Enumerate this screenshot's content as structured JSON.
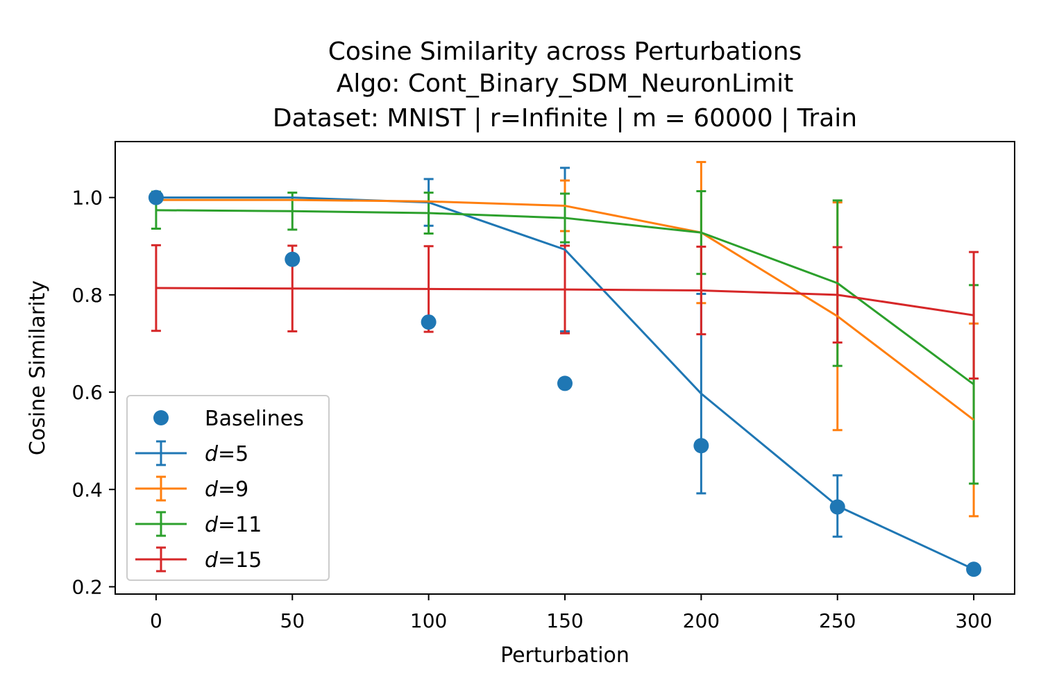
{
  "chart_data": {
    "type": "line",
    "title": "Cosine Similarity across Perturbations",
    "subtitle_lines": [
      "Algo: Cont_Binary_SDM_NeuronLimit",
      "Dataset: MNIST | r=Infinite | m = 60000 | Train"
    ],
    "xlabel": "Perturbation",
    "ylabel": "Cosine Similarity",
    "xlim": [
      -15,
      315
    ],
    "ylim": [
      0.185,
      1.115
    ],
    "xticks": [
      0,
      50,
      100,
      150,
      200,
      250,
      300
    ],
    "yticks": [
      0.2,
      0.4,
      0.6,
      0.8,
      1.0
    ],
    "xtick_labels": [
      "0",
      "50",
      "100",
      "150",
      "200",
      "250",
      "300"
    ],
    "ytick_labels": [
      "0.2",
      "0.4",
      "0.6",
      "0.8",
      "1.0"
    ],
    "grid": false,
    "legend_position": "lower-left",
    "x": [
      0,
      50,
      100,
      150,
      200,
      250,
      300
    ],
    "baselines": {
      "name": "Baselines",
      "color": "#1f77b4",
      "values": [
        1.0,
        0.873,
        0.744,
        0.618,
        0.49,
        0.364,
        0.236
      ]
    },
    "series": [
      {
        "name": "d=5",
        "var": "d",
        "eq": "=5",
        "color": "#1f77b4",
        "values": [
          1.0,
          1.0,
          0.99,
          0.893,
          0.597,
          0.366,
          0.236
        ],
        "errors": [
          0.0,
          0.0,
          0.048,
          0.168,
          0.205,
          0.063,
          0.0
        ]
      },
      {
        "name": "d=9",
        "var": "d",
        "eq": "=9",
        "color": "#ff7f0e",
        "values": [
          0.995,
          0.995,
          0.992,
          0.983,
          0.928,
          0.756,
          0.543
        ],
        "errors": [
          0.0,
          0.0,
          0.0,
          0.052,
          0.145,
          0.234,
          0.198
        ]
      },
      {
        "name": "d=11",
        "var": "d",
        "eq": "=11",
        "color": "#2ca02c",
        "values": [
          0.974,
          0.972,
          0.968,
          0.958,
          0.928,
          0.824,
          0.616
        ],
        "errors": [
          0.038,
          0.038,
          0.042,
          0.05,
          0.085,
          0.17,
          0.204
        ]
      },
      {
        "name": "d=15",
        "var": "d",
        "eq": "=15",
        "color": "#d62728",
        "values": [
          0.814,
          0.813,
          0.812,
          0.811,
          0.809,
          0.8,
          0.758
        ],
        "errors": [
          0.088,
          0.088,
          0.088,
          0.09,
          0.09,
          0.098,
          0.13
        ]
      }
    ]
  }
}
